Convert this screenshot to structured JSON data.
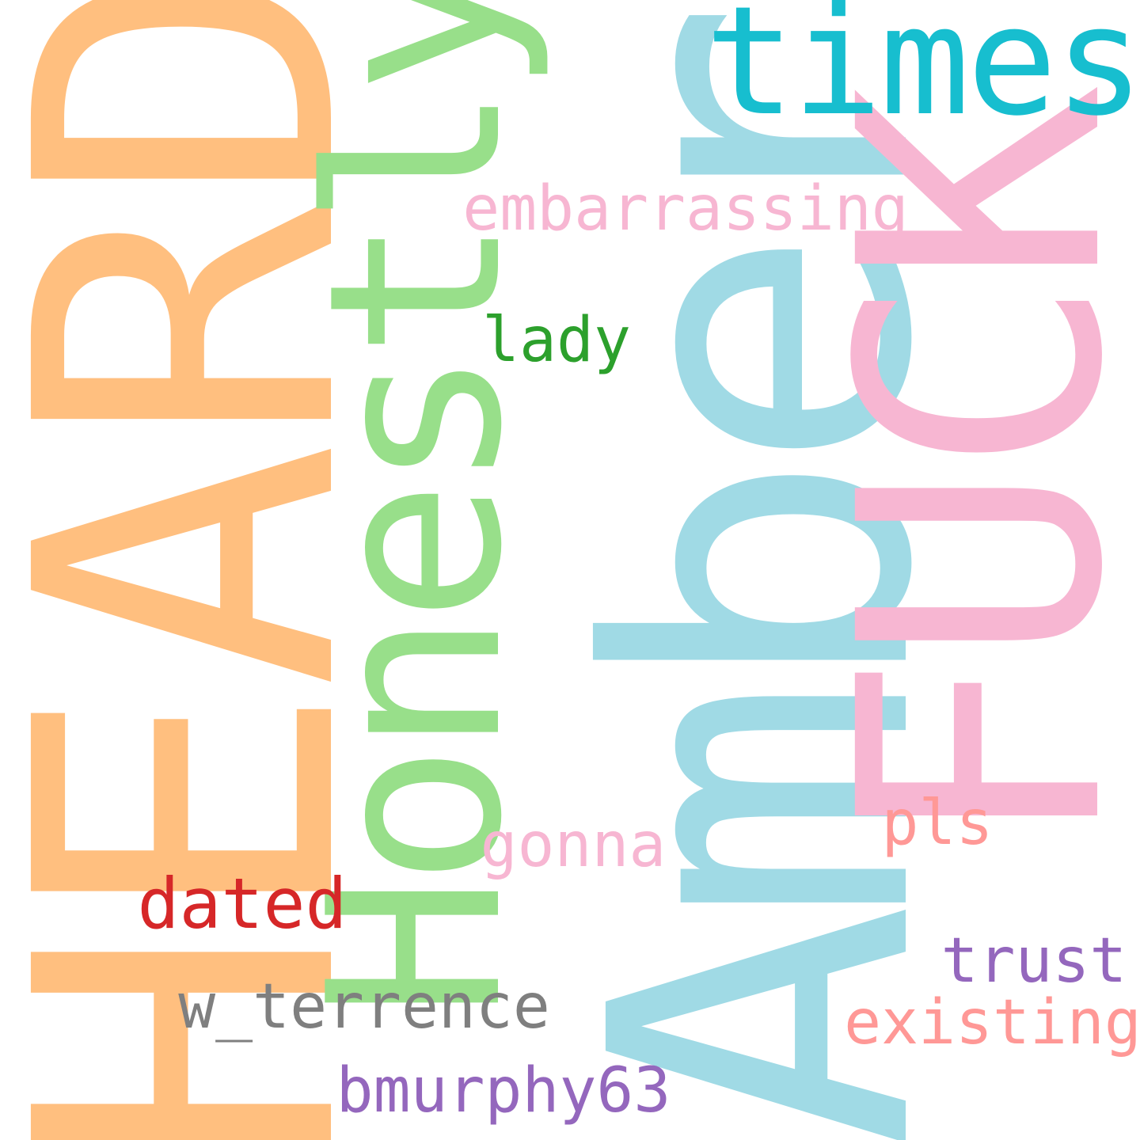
{
  "words": {
    "heard": {
      "text": "HEARD",
      "color": "#ffbf7f"
    },
    "honestly": {
      "text": "Honestly",
      "color": "#98df8a"
    },
    "amber": {
      "text": "Amber",
      "color": "#a0dae5"
    },
    "fuck": {
      "text": "FUCK",
      "color": "#f7b6d2"
    },
    "times": {
      "text": "times",
      "color": "#17becf"
    },
    "embarrassing": {
      "text": "embarrassing",
      "color": "#f7b6d2"
    },
    "lady": {
      "text": "lady",
      "color": "#2ca02c"
    },
    "gonna": {
      "text": "gonna",
      "color": "#f7b6d2"
    },
    "pls": {
      "text": "pls",
      "color": "#ff9896"
    },
    "dated": {
      "text": "dated",
      "color": "#d62728"
    },
    "w_terrence": {
      "text": "w_terrence",
      "color": "#7f7f7f"
    },
    "trust": {
      "text": "trust",
      "color": "#9467bd"
    },
    "existing": {
      "text": "existing",
      "color": "#ff9896"
    },
    "bmurphy63": {
      "text": "bmurphy63",
      "color": "#9467bd"
    }
  }
}
